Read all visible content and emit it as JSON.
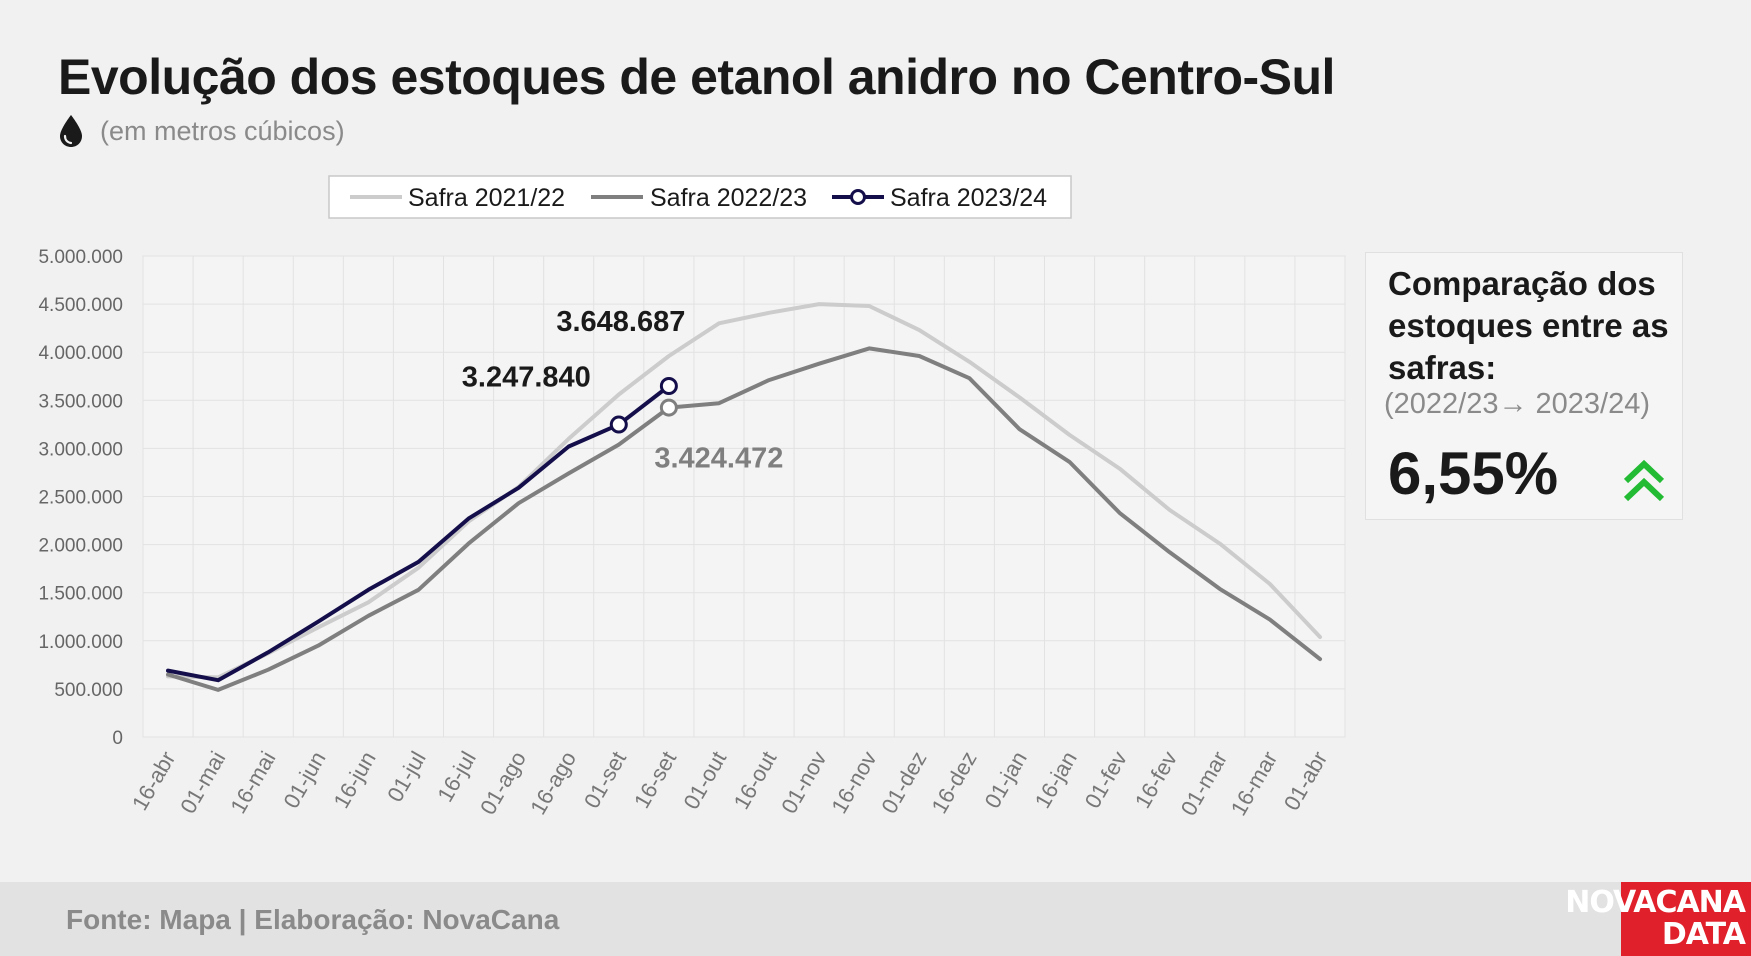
{
  "header": {
    "title": "Evolução dos estoques de etanol anidro no Centro-Sul",
    "subtitle": "(em metros cúbicos)",
    "icon": "drop-icon"
  },
  "comparison": {
    "title": "Comparação dos estoques entre as safras:",
    "period": "(2022/23→ 2023/24)",
    "value": "6,55%",
    "icon": "double-chevron-up-icon",
    "icon_color": "#22bb33"
  },
  "footer": {
    "source": "Fonte: Mapa | Elaboração: NovaCana",
    "logo_line1": "NOVACANA",
    "logo_line2": "DATA",
    "logo_color": "#e0202a"
  },
  "chart_data": {
    "type": "line",
    "title": "",
    "xlabel": "",
    "ylabel": "",
    "categories": [
      "16-abr",
      "01-mai",
      "16-mai",
      "01-jun",
      "16-jun",
      "01-jul",
      "16-jul",
      "01-ago",
      "16-ago",
      "01-set",
      "16-set",
      "01-out",
      "16-out",
      "01-nov",
      "16-nov",
      "01-dez",
      "16-dez",
      "01-jan",
      "16-jan",
      "01-fev",
      "16-fev",
      "01-mar",
      "16-mar",
      "01-abr"
    ],
    "ylim": [
      0,
      5000000
    ],
    "yticks": [
      "0",
      "500.000",
      "1.000.000",
      "1.500.000",
      "2.000.000",
      "2.500.000",
      "3.000.000",
      "3.500.000",
      "4.000.000",
      "4.500.000",
      "5.000.000"
    ],
    "grid": true,
    "legend_position": "top",
    "series": [
      {
        "name": "Safra 2021/22",
        "color": "#cccccc",
        "values": [
          630000,
          620000,
          870000,
          1140000,
          1400000,
          1760000,
          2240000,
          2600000,
          3100000,
          3560000,
          3960000,
          4300000,
          4410000,
          4500000,
          4480000,
          4230000,
          3900000,
          3530000,
          3140000,
          2790000,
          2360000,
          2010000,
          1590000,
          1040000
        ]
      },
      {
        "name": "Safra 2022/23",
        "color": "#7f7f7f",
        "values": [
          650000,
          490000,
          700000,
          950000,
          1260000,
          1530000,
          2010000,
          2430000,
          2740000,
          3040000,
          3424472,
          3470000,
          3710000,
          3880000,
          4040000,
          3960000,
          3730000,
          3200000,
          2860000,
          2330000,
          1920000,
          1540000,
          1220000,
          810000
        ]
      },
      {
        "name": "Safra 2023/24",
        "color": "#140f4b",
        "values": [
          690000,
          590000,
          880000,
          1200000,
          1530000,
          1820000,
          2270000,
          2590000,
          3020000,
          3247840,
          3648687,
          null,
          null,
          null,
          null,
          null,
          null,
          null,
          null,
          null,
          null,
          null,
          null,
          null
        ]
      }
    ],
    "annotations": [
      {
        "series": 2,
        "index": 9,
        "label": "3.247.840",
        "color": "#1a1a1a"
      },
      {
        "series": 2,
        "index": 10,
        "label": "3.648.687",
        "color": "#1a1a1a"
      },
      {
        "series": 1,
        "index": 10,
        "label": "3.424.472",
        "color": "#7f7f7f"
      }
    ]
  }
}
